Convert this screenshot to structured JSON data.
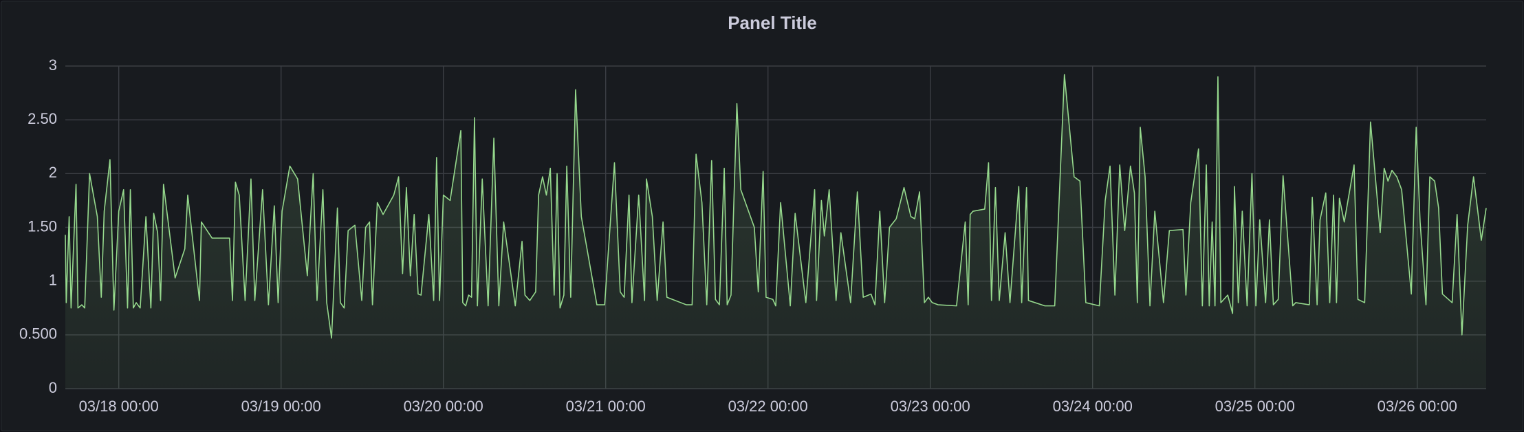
{
  "chart_data": {
    "type": "line",
    "title": "Panel Title",
    "x": [
      "03/17 16:06",
      "03/17 16:14",
      "03/17 16:40",
      "03/17 16:57",
      "03/17 17:41",
      "03/17 17:58",
      "03/17 18:32",
      "03/17 18:58",
      "03/17 19:41",
      "03/17 20:50",
      "03/17 21:25",
      "03/17 21:51",
      "03/17 22:42",
      "03/17 23:17",
      "03/18 00:00",
      "03/18 00:43",
      "03/18 01:18",
      "03/18 01:43",
      "03/18 02:09",
      "03/18 02:35",
      "03/18 03:10",
      "03/18 04:01",
      "03/18 04:45",
      "03/18 05:10",
      "03/18 05:45",
      "03/18 06:11",
      "03/18 06:37",
      "03/18 08:20",
      "03/18 09:46",
      "03/18 10:12",
      "03/18 11:56",
      "03/18 12:13",
      "03/18 13:48",
      "03/18 16:23",
      "03/18 16:49",
      "03/18 17:15",
      "03/18 17:49",
      "03/18 18:41",
      "03/18 19:33",
      "03/18 20:07",
      "03/18 21:16",
      "03/18 22:08",
      "03/18 23:00",
      "03/18 23:34",
      "03/19 00:09",
      "03/19 01:18",
      "03/19 02:27",
      "03/19 03:53",
      "03/19 04:45",
      "03/19 05:19",
      "03/19 06:11",
      "03/19 06:45",
      "03/19 07:28",
      "03/19 08:20",
      "03/19 08:46",
      "03/19 09:20",
      "03/19 09:55",
      "03/19 10:55",
      "03/19 11:56",
      "03/19 12:30",
      "03/19 13:05",
      "03/19 13:31",
      "03/19 14:14",
      "03/19 15:05",
      "03/19 16:40",
      "03/19 17:23",
      "03/19 17:58",
      "03/19 18:32",
      "03/19 19:07",
      "03/19 19:41",
      "03/19 20:16",
      "03/19 20:42",
      "03/19 21:51",
      "03/19 22:34",
      "03/19 23:00",
      "03/19 23:26",
      "03/20 00:00",
      "03/20 01:00",
      "03/20 02:35",
      "03/20 02:52",
      "03/20 03:18",
      "03/20 03:44",
      "03/20 04:10",
      "03/20 04:36",
      "03/20 05:02",
      "03/20 05:45",
      "03/20 06:37",
      "03/20 07:28",
      "03/20 08:12",
      "03/20 08:55",
      "03/20 10:38",
      "03/20 11:38",
      "03/20 12:04",
      "03/20 12:47",
      "03/20 13:39",
      "03/20 14:05",
      "03/20 14:40",
      "03/20 15:14",
      "03/20 15:49",
      "03/20 16:23",
      "03/20 16:49",
      "03/20 17:15",
      "03/20 17:49",
      "03/20 18:15",
      "03/20 18:50",
      "03/20 19:33",
      "03/20 20:24",
      "03/20 22:42",
      "03/20 23:51",
      "03/21 01:18",
      "03/21 02:09",
      "03/21 02:44",
      "03/21 03:27",
      "03/21 03:53",
      "03/21 04:53",
      "03/21 05:45",
      "03/21 06:02",
      "03/21 06:54",
      "03/21 07:37",
      "03/21 08:29",
      "03/21 09:03",
      "03/21 11:56",
      "03/21 12:47",
      "03/21 13:22",
      "03/21 14:14",
      "03/21 14:57",
      "03/21 15:40",
      "03/21 16:14",
      "03/21 16:49",
      "03/21 17:32",
      "03/21 17:58",
      "03/21 18:32",
      "03/21 19:24",
      "03/21 19:59",
      "03/21 21:59",
      "03/21 22:34",
      "03/21 23:17",
      "03/21 23:43",
      "03/22 00:43",
      "03/22 01:09",
      "03/22 01:52",
      "03/22 03:18",
      "03/22 04:01",
      "03/22 05:36",
      "03/22 06:54",
      "03/22 07:11",
      "03/22 07:54",
      "03/22 08:20",
      "03/22 09:03",
      "03/22 10:04",
      "03/22 10:47",
      "03/22 12:13",
      "03/22 13:13",
      "03/22 14:05",
      "03/22 15:14",
      "03/22 15:49",
      "03/22 16:32",
      "03/22 17:15",
      "03/22 17:58",
      "03/22 18:58",
      "03/22 20:07",
      "03/22 21:08",
      "03/22 21:42",
      "03/22 22:25",
      "03/22 23:08",
      "03/22 23:43",
      "03/23 00:17",
      "03/23 01:09",
      "03/23 03:53",
      "03/23 05:10",
      "03/23 05:36",
      "03/23 05:54",
      "03/23 06:19",
      "03/23 08:03",
      "03/23 08:37",
      "03/23 09:03",
      "03/23 09:38",
      "03/23 10:12",
      "03/23 11:04",
      "03/23 11:47",
      "03/23 13:05",
      "03/23 13:31",
      "03/23 14:14",
      "03/23 14:31",
      "03/23 16:57",
      "03/23 18:24",
      "03/23 19:50",
      "03/23 21:16",
      "03/23 22:08",
      "03/23 23:00",
      "03/24 01:00",
      "03/24 01:52",
      "03/24 02:35",
      "03/24 03:18",
      "03/24 04:01",
      "03/24 04:45",
      "03/24 05:36",
      "03/24 06:11",
      "03/24 06:37",
      "03/24 07:03",
      "03/24 07:46",
      "03/24 08:29",
      "03/24 09:12",
      "03/24 10:29",
      "03/24 11:21",
      "03/24 13:22",
      "03/24 13:48",
      "03/24 14:31",
      "03/24 15:40",
      "03/24 16:14",
      "03/24 16:49",
      "03/24 17:15",
      "03/24 17:41",
      "03/24 18:06",
      "03/24 18:32",
      "03/24 18:58",
      "03/24 19:59",
      "03/24 20:42",
      "03/24 20:59",
      "03/24 21:33",
      "03/24 22:08",
      "03/24 22:51",
      "03/24 23:34",
      "03/25 00:09",
      "03/25 00:43",
      "03/25 01:35",
      "03/25 02:09",
      "03/25 02:44",
      "03/25 03:27",
      "03/25 04:10",
      "03/25 05:36",
      "03/25 06:02",
      "03/25 08:03",
      "03/25 08:29",
      "03/25 09:12",
      "03/25 09:38",
      "03/25 10:29",
      "03/25 11:04",
      "03/25 11:38",
      "03/25 12:04",
      "03/25 12:30",
      "03/25 13:13",
      "03/25 14:40",
      "03/25 15:14",
      "03/25 16:14",
      "03/25 17:06",
      "03/25 18:32",
      "03/25 19:07",
      "03/25 19:41",
      "03/25 20:16",
      "03/25 20:59",
      "03/25 21:42",
      "03/25 23:08",
      "03/25 23:51",
      "03/26 00:26",
      "03/26 01:18",
      "03/26 01:52",
      "03/26 02:35",
      "03/26 03:10",
      "03/26 03:44",
      "03/26 05:10",
      "03/26 05:54",
      "03/26 06:37",
      "03/26 07:28",
      "03/26 08:20",
      "03/26 09:29",
      "03/26 10:12"
    ],
    "series": [
      {
        "color": "#96d98d",
        "values": [
          1.43,
          0.8,
          1.6,
          0.75,
          1.9,
          0.75,
          0.78,
          0.75,
          2.0,
          1.6,
          0.85,
          1.65,
          2.13,
          0.73,
          1.65,
          1.85,
          0.75,
          1.85,
          0.75,
          0.8,
          0.75,
          1.6,
          0.75,
          1.63,
          1.45,
          0.82,
          1.9,
          1.03,
          1.3,
          1.8,
          0.82,
          1.55,
          1.4,
          1.4,
          0.82,
          1.92,
          1.8,
          0.82,
          1.95,
          0.82,
          1.85,
          0.78,
          1.7,
          0.8,
          1.65,
          2.07,
          1.95,
          1.05,
          2.0,
          0.82,
          1.85,
          0.8,
          0.47,
          1.68,
          0.8,
          0.75,
          1.47,
          1.52,
          0.82,
          1.5,
          1.55,
          0.78,
          1.73,
          1.62,
          1.8,
          1.97,
          1.07,
          1.87,
          1.05,
          1.62,
          0.88,
          0.87,
          1.62,
          0.82,
          2.15,
          0.82,
          1.8,
          1.75,
          2.4,
          0.8,
          0.77,
          0.87,
          0.85,
          2.52,
          0.77,
          1.95,
          0.77,
          2.33,
          0.77,
          1.55,
          0.77,
          1.37,
          0.87,
          0.82,
          0.9,
          1.8,
          1.97,
          1.8,
          2.05,
          0.87,
          2.0,
          0.75,
          0.87,
          2.07,
          0.85,
          2.78,
          1.6,
          0.78,
          0.78,
          2.1,
          0.9,
          0.85,
          1.8,
          0.8,
          1.8,
          0.82,
          1.95,
          1.6,
          0.82,
          1.55,
          0.85,
          0.78,
          0.78,
          2.18,
          1.73,
          0.78,
          2.12,
          0.83,
          0.78,
          2.05,
          0.78,
          0.87,
          2.65,
          1.85,
          1.5,
          0.9,
          2.02,
          0.85,
          0.83,
          0.77,
          1.73,
          0.77,
          1.63,
          0.8,
          1.85,
          0.82,
          1.75,
          1.42,
          1.85,
          0.82,
          1.45,
          0.8,
          1.83,
          0.85,
          0.88,
          0.78,
          1.65,
          0.8,
          1.5,
          1.58,
          1.87,
          1.6,
          1.58,
          1.83,
          0.8,
          0.85,
          0.8,
          0.78,
          0.77,
          1.55,
          0.78,
          1.62,
          1.65,
          1.67,
          2.1,
          0.82,
          1.87,
          0.82,
          1.45,
          0.8,
          1.88,
          0.8,
          1.87,
          0.82,
          0.77,
          0.77,
          2.92,
          1.97,
          1.93,
          0.8,
          0.77,
          1.75,
          2.07,
          0.87,
          2.08,
          1.47,
          2.07,
          1.82,
          0.8,
          2.43,
          1.97,
          0.77,
          1.65,
          0.8,
          1.47,
          1.48,
          0.87,
          1.73,
          2.23,
          0.77,
          2.08,
          0.77,
          1.55,
          0.77,
          2.9,
          0.8,
          0.87,
          0.7,
          1.88,
          0.8,
          1.65,
          0.77,
          2.0,
          0.77,
          1.57,
          0.8,
          1.57,
          0.78,
          0.83,
          1.98,
          0.77,
          0.8,
          0.78,
          1.78,
          0.78,
          1.57,
          1.82,
          0.8,
          1.8,
          0.8,
          1.77,
          1.55,
          2.08,
          0.83,
          0.8,
          2.48,
          1.45,
          2.05,
          1.93,
          2.03,
          1.97,
          1.85,
          0.88,
          2.43,
          1.55,
          0.78,
          1.97,
          1.93,
          1.68,
          0.88,
          0.8,
          1.62,
          0.5,
          1.52,
          1.97,
          1.38,
          1.68
        ]
      }
    ],
    "xlim": [
      "03/17 16:06",
      "03/26 10:12"
    ],
    "xticks": [
      "03/18 00:00",
      "03/19 00:00",
      "03/20 00:00",
      "03/21 00:00",
      "03/22 00:00",
      "03/23 00:00",
      "03/24 00:00",
      "03/25 00:00",
      "03/26 00:00"
    ],
    "ylim": [
      0,
      3
    ],
    "yticks": [
      0,
      {
        "value": 0.5,
        "label": "0.500"
      },
      1,
      {
        "value": 1.5,
        "label": "1.50"
      },
      2,
      {
        "value": 2.5,
        "label": "2.50"
      },
      3
    ],
    "grid": true
  }
}
